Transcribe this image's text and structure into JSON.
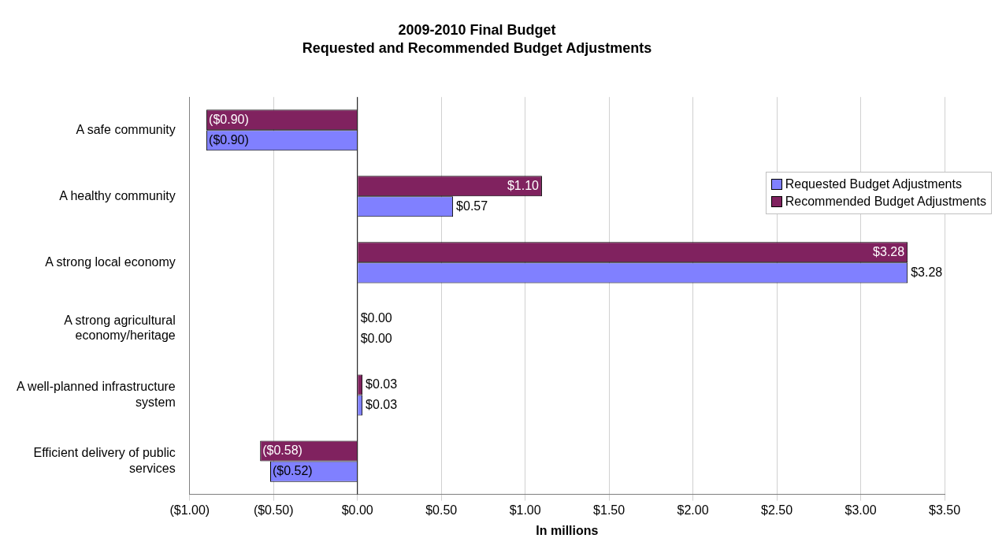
{
  "chart_data": {
    "type": "bar",
    "orientation": "horizontal",
    "title": "2009-2010 Final Budget",
    "subtitle": "Requested and Recommended Budget Adjustments",
    "xlabel": "In millions",
    "categories": [
      "A safe community",
      "A healthy community",
      "A strong local economy",
      "A strong agricultural economy/heritage",
      "A well-planned infrastructure system",
      "Efficient delivery of public services"
    ],
    "series": [
      {
        "name": "Requested Budget Adjustments",
        "color": "#8080ff",
        "values": [
          -0.9,
          0.57,
          3.28,
          0.0,
          0.03,
          -0.52
        ],
        "value_labels": [
          "($0.90)",
          "$0.57",
          "$3.28",
          "$0.00",
          "$0.03",
          "($0.52)"
        ]
      },
      {
        "name": "Recommended Budget Adjustments",
        "color": "#80225f",
        "values": [
          -0.9,
          1.1,
          3.28,
          0.0,
          0.03,
          -0.58
        ],
        "value_labels": [
          "($0.90)",
          "$1.10",
          "$3.28",
          "$0.00",
          "$0.03",
          "($0.58)"
        ]
      }
    ],
    "xlim": [
      -1.0,
      3.5
    ],
    "xticks": [
      {
        "value": -1.0,
        "label": "($1.00)"
      },
      {
        "value": -0.5,
        "label": "($0.50)"
      },
      {
        "value": 0,
        "label": "$0.00"
      },
      {
        "value": 0.5,
        "label": "$0.50"
      },
      {
        "value": 1.0,
        "label": "$1.00"
      },
      {
        "value": 1.5,
        "label": "$1.50"
      },
      {
        "value": 2.0,
        "label": "$2.00"
      },
      {
        "value": 2.5,
        "label": "$2.50"
      },
      {
        "value": 3.0,
        "label": "$3.00"
      },
      {
        "value": 3.5,
        "label": "$3.50"
      }
    ],
    "grid": "x",
    "legend": "top right"
  }
}
